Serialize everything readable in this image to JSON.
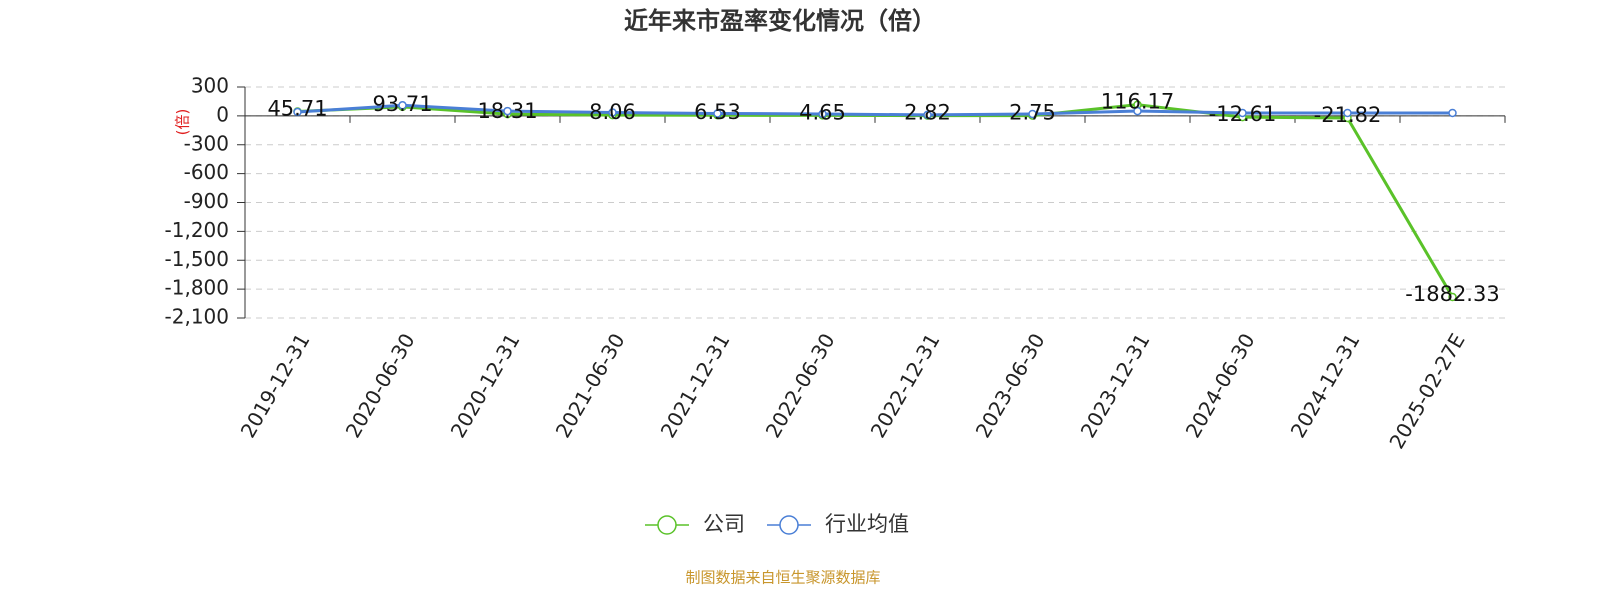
{
  "chart_data": {
    "type": "line",
    "title": "近年来市盈率变化情况（倍）",
    "y_label": "(倍)",
    "categories": [
      "2019-12-31",
      "2020-06-30",
      "2020-12-31",
      "2021-06-30",
      "2021-12-31",
      "2022-06-30",
      "2022-12-31",
      "2023-06-30",
      "2023-12-31",
      "2024-06-30",
      "2024-12-31",
      "2025-02-27E"
    ],
    "series": [
      {
        "name": "公司",
        "color": "#5ac229",
        "values": [
          45.71,
          93.71,
          18.31,
          8.06,
          6.53,
          4.65,
          2.82,
          2.75,
          116.17,
          -12.61,
          -21.82,
          -1882.33
        ]
      },
      {
        "name": "行业均值",
        "color": "#4a7fd6",
        "values": [
          40,
          110,
          50,
          35,
          25,
          20,
          10,
          20,
          50,
          30,
          30,
          30
        ]
      }
    ],
    "ylim": [
      -2100,
      300
    ],
    "yticks": [
      300,
      0,
      -300,
      -600,
      -900,
      {
        "value": -1200,
        "label": "-1,200"
      },
      {
        "value": -1500,
        "label": "-1,500"
      },
      {
        "value": -1800,
        "label": "-1,800"
      },
      {
        "value": -2100,
        "label": "-2,100"
      }
    ],
    "grid": true,
    "source": "制图数据来自恒生聚源数据库"
  }
}
